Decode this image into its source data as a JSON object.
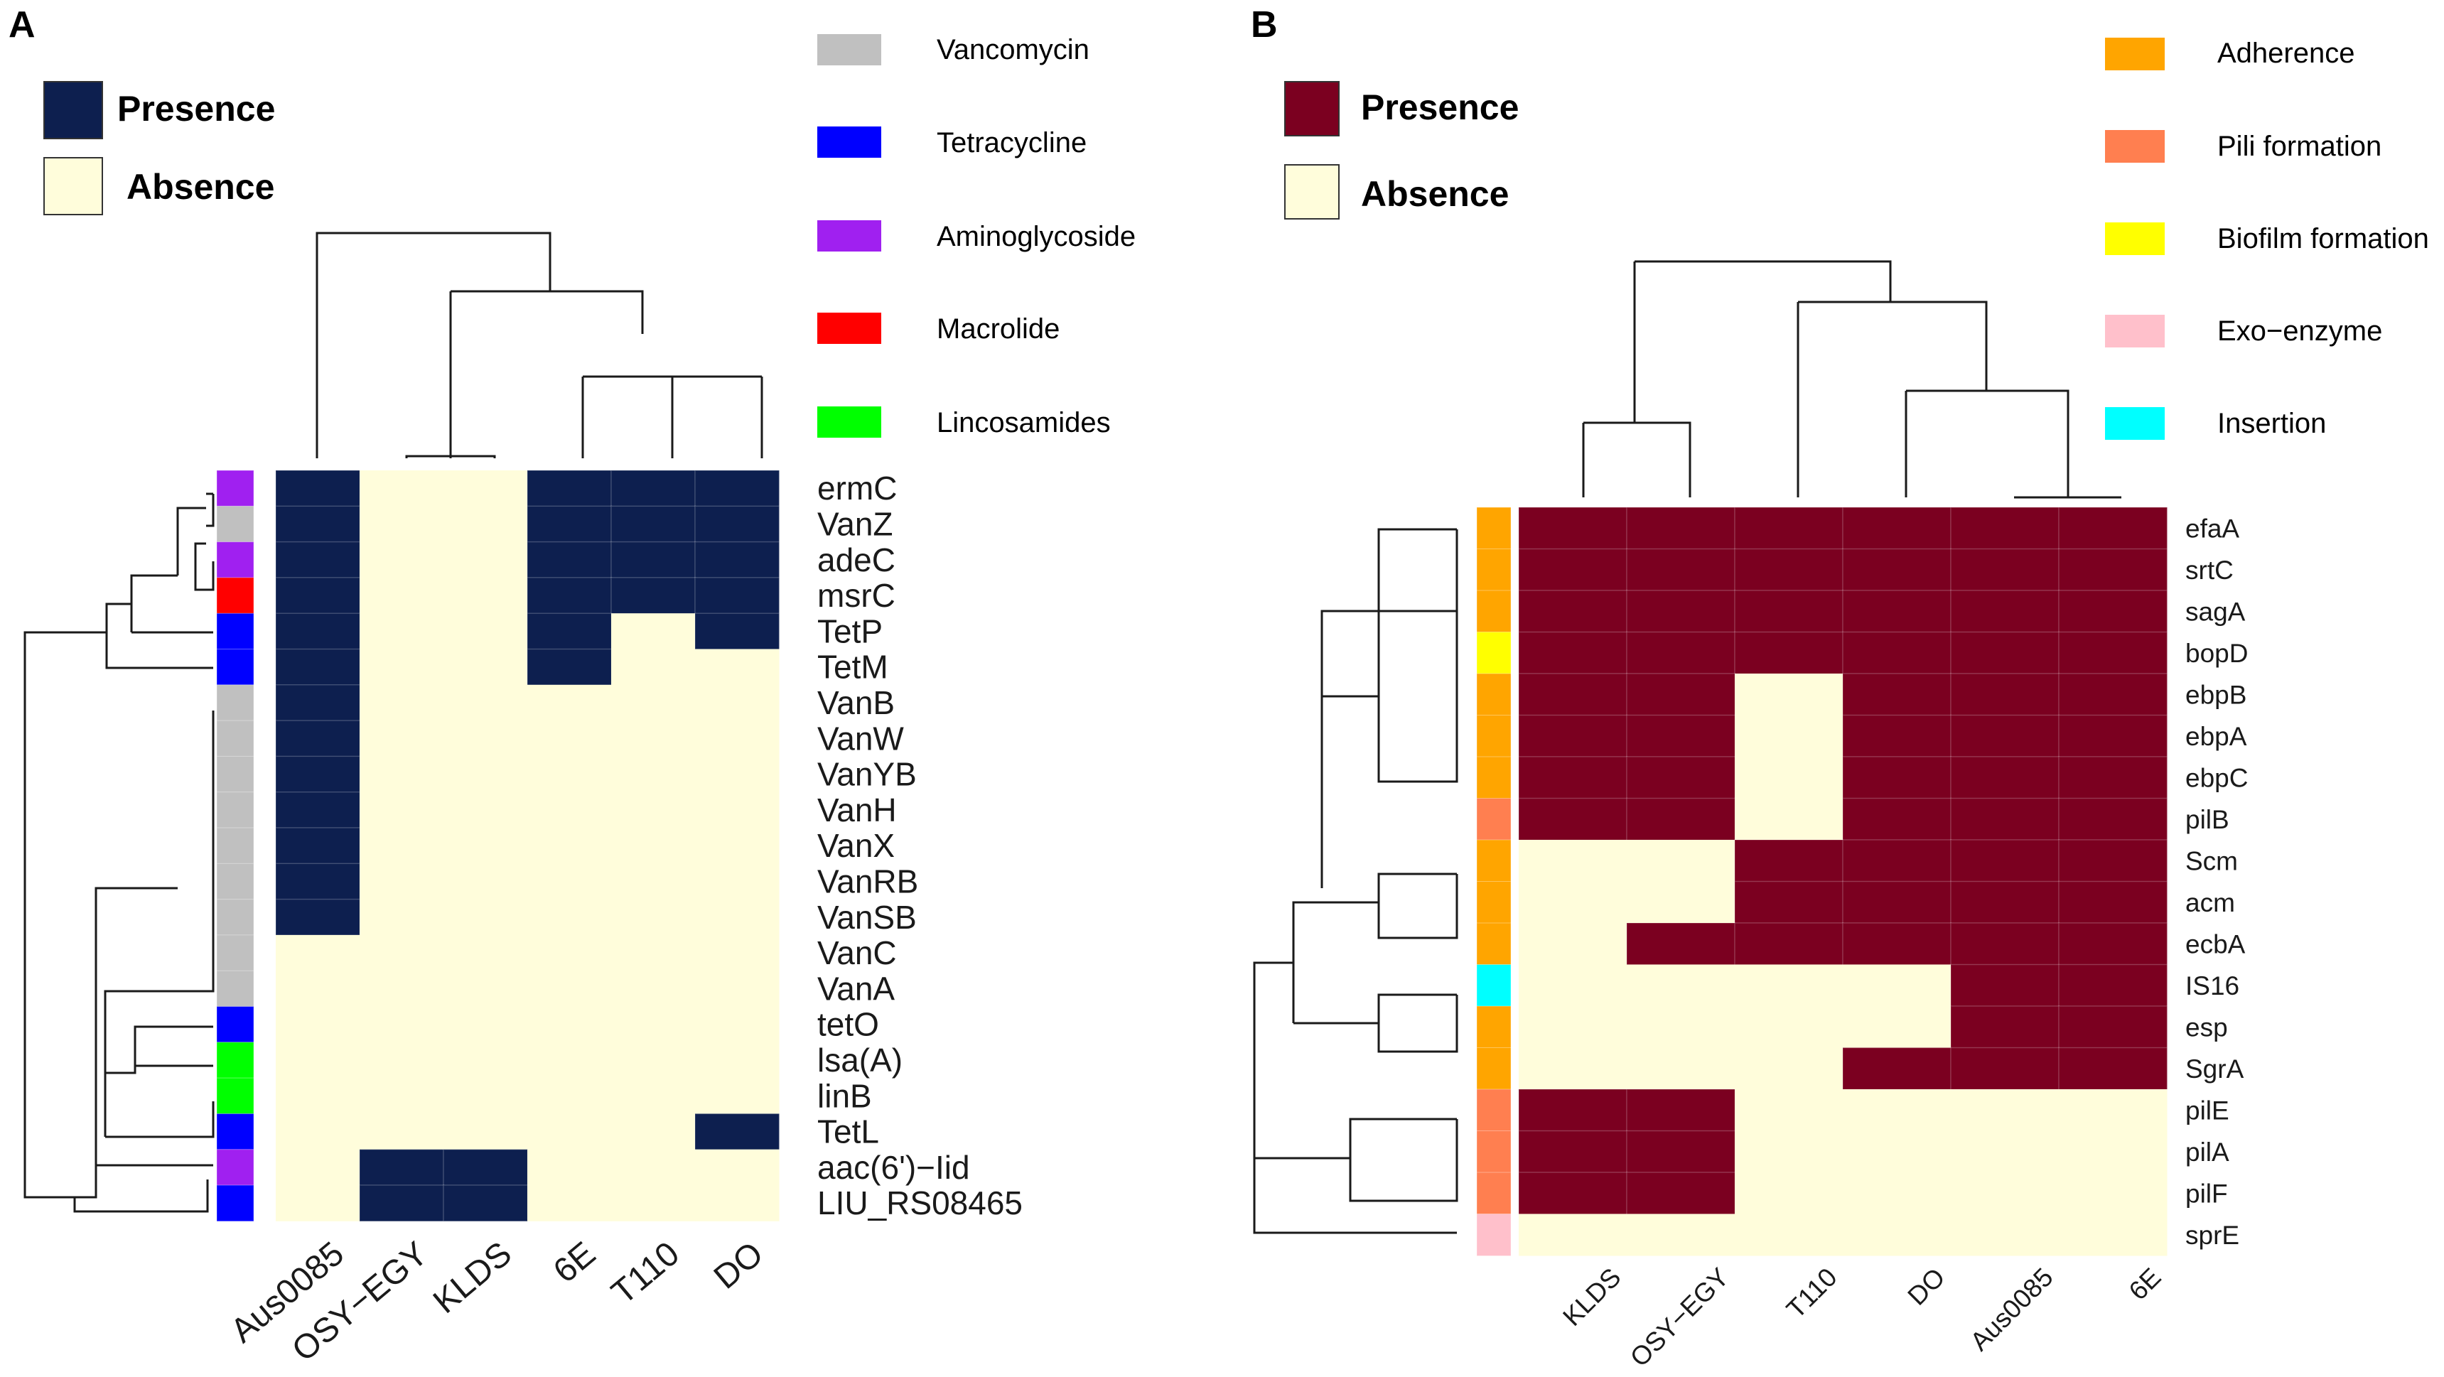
{
  "colors": {
    "presence_a": "#0d1f4f",
    "presence_b": "#7b0020",
    "absence": "#fffddb",
    "dendro": "#1a1a1a"
  },
  "panel_a": {
    "letter": "A",
    "legend": {
      "presence": "Presence",
      "absence": "Absence"
    },
    "categories": [
      {
        "name": "Vancomycin",
        "color": "#c0c0c0"
      },
      {
        "name": "Tetracycline",
        "color": "#0000ff"
      },
      {
        "name": "Aminoglycoside",
        "color": "#a020f0"
      },
      {
        "name": "Macrolide",
        "color": "#ff0000"
      },
      {
        "name": "Lincosamides",
        "color": "#00ff00"
      }
    ]
  },
  "panel_b": {
    "letter": "B",
    "legend": {
      "presence": "Presence",
      "absence": "Absence"
    },
    "categories": [
      {
        "name": "Adherence",
        "color": "#ffa500"
      },
      {
        "name": "Pili formation",
        "color": "#ff7f50"
      },
      {
        "name": "Biofilm formation",
        "color": "#ffff00"
      },
      {
        "name": "Exo−enzyme",
        "color": "#ffc0cb"
      },
      {
        "name": "Insertion",
        "color": "#00ffff"
      }
    ]
  },
  "chart_data": [
    {
      "type": "heatmap",
      "title": "A",
      "columns": [
        "Aus0085",
        "OSY−EGY",
        "KLDS",
        "6E",
        "T110",
        "DO"
      ],
      "rows": [
        "ermC",
        "VanZ",
        "adeC",
        "msrC",
        "TetP",
        "TetM",
        "VanB",
        "VanW",
        "VanYB",
        "VanH",
        "VanX",
        "VanRB",
        "VanSB",
        "VanC",
        "VanA",
        "tetO",
        "lsa(A)",
        "linB",
        "TetL",
        "aac(6')−Iid",
        "LIU_RS08465"
      ],
      "row_categories": [
        "Aminoglycoside",
        "Vancomycin",
        "Aminoglycoside",
        "Macrolide",
        "Tetracycline",
        "Tetracycline",
        "Vancomycin",
        "Vancomycin",
        "Vancomycin",
        "Vancomycin",
        "Vancomycin",
        "Vancomycin",
        "Vancomycin",
        "Vancomycin",
        "Vancomycin",
        "Tetracycline",
        "Lincosamides",
        "Lincosamides",
        "Tetracycline",
        "Aminoglycoside",
        "Tetracycline"
      ],
      "values": [
        [
          1,
          0,
          0,
          1,
          1,
          1
        ],
        [
          1,
          0,
          0,
          1,
          1,
          1
        ],
        [
          1,
          0,
          0,
          1,
          1,
          1
        ],
        [
          1,
          0,
          0,
          1,
          1,
          1
        ],
        [
          1,
          0,
          0,
          1,
          0,
          1
        ],
        [
          1,
          0,
          0,
          1,
          0,
          0
        ],
        [
          1,
          0,
          0,
          0,
          0,
          0
        ],
        [
          1,
          0,
          0,
          0,
          0,
          0
        ],
        [
          1,
          0,
          0,
          0,
          0,
          0
        ],
        [
          1,
          0,
          0,
          0,
          0,
          0
        ],
        [
          1,
          0,
          0,
          0,
          0,
          0
        ],
        [
          1,
          0,
          0,
          0,
          0,
          0
        ],
        [
          1,
          0,
          0,
          0,
          0,
          0
        ],
        [
          0,
          0,
          0,
          0,
          0,
          0
        ],
        [
          0,
          0,
          0,
          0,
          0,
          0
        ],
        [
          0,
          0,
          0,
          0,
          0,
          0
        ],
        [
          0,
          0,
          0,
          0,
          0,
          0
        ],
        [
          0,
          0,
          0,
          0,
          0,
          0
        ],
        [
          0,
          0,
          0,
          0,
          0,
          1
        ],
        [
          0,
          1,
          1,
          0,
          0,
          0
        ],
        [
          0,
          1,
          1,
          0,
          0,
          0
        ]
      ]
    },
    {
      "type": "heatmap",
      "title": "B",
      "columns": [
        "KLDS",
        "OSY−EGY",
        "T110",
        "DO",
        "Aus0085",
        "6E"
      ],
      "rows": [
        "efaA",
        "srtC",
        "sagA",
        "bopD",
        "ebpB",
        "ebpA",
        "ebpC",
        "pilB",
        "Scm",
        "acm",
        "ecbA",
        "IS16",
        "esp",
        "SgrA",
        "pilE",
        "pilA",
        "pilF",
        "sprE"
      ],
      "row_categories": [
        "Adherence",
        "Adherence",
        "Adherence",
        "Biofilm formation",
        "Adherence",
        "Adherence",
        "Adherence",
        "Pili formation",
        "Adherence",
        "Adherence",
        "Adherence",
        "Insertion",
        "Adherence",
        "Adherence",
        "Pili formation",
        "Pili formation",
        "Pili formation",
        "Exo−enzyme"
      ],
      "values": [
        [
          1,
          1,
          1,
          1,
          1,
          1
        ],
        [
          1,
          1,
          1,
          1,
          1,
          1
        ],
        [
          1,
          1,
          1,
          1,
          1,
          1
        ],
        [
          1,
          1,
          1,
          1,
          1,
          1
        ],
        [
          1,
          1,
          0,
          1,
          1,
          1
        ],
        [
          1,
          1,
          0,
          1,
          1,
          1
        ],
        [
          1,
          1,
          0,
          1,
          1,
          1
        ],
        [
          1,
          1,
          0,
          1,
          1,
          1
        ],
        [
          0,
          0,
          1,
          1,
          1,
          1
        ],
        [
          0,
          0,
          1,
          1,
          1,
          1
        ],
        [
          0,
          1,
          1,
          1,
          1,
          1
        ],
        [
          0,
          0,
          0,
          0,
          1,
          1
        ],
        [
          0,
          0,
          0,
          0,
          1,
          1
        ],
        [
          0,
          0,
          0,
          1,
          1,
          1
        ],
        [
          1,
          1,
          0,
          0,
          0,
          0
        ],
        [
          1,
          1,
          0,
          0,
          0,
          0
        ],
        [
          1,
          1,
          0,
          0,
          0,
          0
        ],
        [
          0,
          0,
          0,
          0,
          0,
          0
        ]
      ]
    }
  ]
}
